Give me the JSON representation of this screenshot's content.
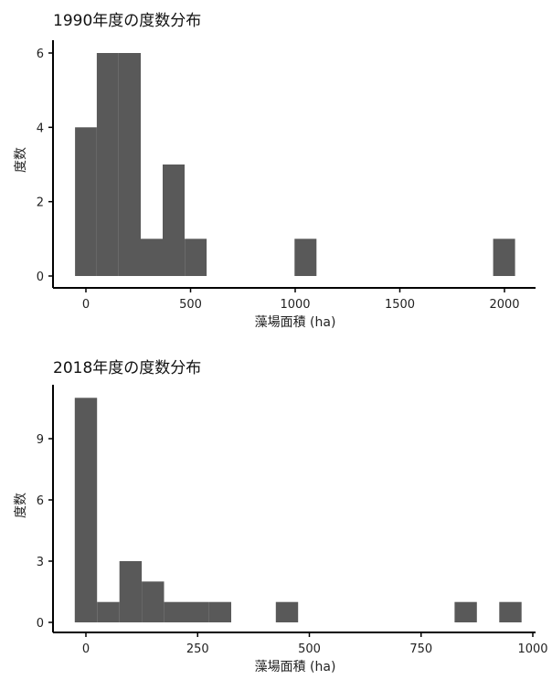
{
  "chart_data": [
    {
      "type": "bar",
      "title": "1990年度の度数分布",
      "xlabel": "藻場面積 (ha)",
      "ylabel": "度数",
      "xlim": [
        -50,
        2080
      ],
      "ylim": [
        0,
        6.3
      ],
      "xticks": [
        0,
        500,
        1000,
        1500,
        2000
      ],
      "yticks": [
        0,
        2,
        4,
        6
      ],
      "bins": [
        {
          "x0": -52,
          "x1": 52,
          "count": 4
        },
        {
          "x0": 52,
          "x1": 157,
          "count": 6
        },
        {
          "x0": 157,
          "x1": 262,
          "count": 6
        },
        {
          "x0": 262,
          "x1": 367,
          "count": 1
        },
        {
          "x0": 367,
          "x1": 472,
          "count": 3
        },
        {
          "x0": 472,
          "x1": 577,
          "count": 1
        },
        {
          "x0": 997,
          "x1": 1102,
          "count": 1
        },
        {
          "x0": 1946,
          "x1": 2051,
          "count": 1
        }
      ]
    },
    {
      "type": "bar",
      "title": "2018年度の度数分布",
      "xlabel": "藻場面積 (ha)",
      "ylabel": "度数",
      "xlim": [
        -25,
        1000
      ],
      "ylim": [
        0,
        11.5
      ],
      "xticks": [
        0,
        250,
        500,
        750,
        1000
      ],
      "yticks": [
        0,
        3,
        6,
        9
      ],
      "bins": [
        {
          "x0": -25,
          "x1": 25,
          "count": 11
        },
        {
          "x0": 25,
          "x1": 75,
          "count": 1
        },
        {
          "x0": 75,
          "x1": 125,
          "count": 3
        },
        {
          "x0": 125,
          "x1": 175,
          "count": 2
        },
        {
          "x0": 175,
          "x1": 225,
          "count": 1
        },
        {
          "x0": 225,
          "x1": 275,
          "count": 1
        },
        {
          "x0": 275,
          "x1": 325,
          "count": 1
        },
        {
          "x0": 425,
          "x1": 475,
          "count": 1
        },
        {
          "x0": 825,
          "x1": 875,
          "count": 1
        },
        {
          "x0": 925,
          "x1": 975,
          "count": 1
        }
      ]
    }
  ]
}
